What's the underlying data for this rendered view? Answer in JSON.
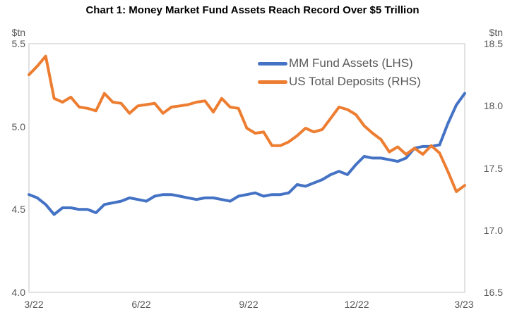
{
  "title": "Chart 1: Money Market Fund Assets Reach Record Over $5 Trillion",
  "axes": {
    "left": {
      "unit": "$tn",
      "ticks": [
        "5.5",
        "5.0",
        "4.5",
        "4.0"
      ]
    },
    "right": {
      "unit": "$tn",
      "ticks": [
        "18.5",
        "18.0",
        "17.5",
        "17.0",
        "16.5"
      ]
    },
    "x": {
      "ticks": [
        "3/22",
        "6/22",
        "9/22",
        "12/22",
        "3/23"
      ]
    }
  },
  "legend": {
    "items": [
      {
        "label": "MM Fund Assets (LHS)",
        "color": "#4472C4"
      },
      {
        "label": "US Total Deposits (RHS)",
        "color": "#ED7D31"
      }
    ]
  },
  "chart_data": {
    "type": "line",
    "title": "Chart 1: Money Market Fund Assets Reach Record Over $5 Trillion",
    "x_frequency": "weekly",
    "x_range": [
      "3/22",
      "3/23"
    ],
    "x_tick_labels": [
      "3/22",
      "6/22",
      "9/22",
      "12/22",
      "3/23"
    ],
    "left_axis": {
      "label": "$tn",
      "range": [
        4.0,
        5.5
      ],
      "tick_step": 0.5
    },
    "right_axis": {
      "label": "$tn",
      "range": [
        16.5,
        18.5
      ],
      "tick_step": 0.5
    },
    "grid": "off",
    "legend_position": "inside-top-right",
    "series": [
      {
        "name": "MM Fund Assets (LHS)",
        "name_key": "mm-fund-assets",
        "axis": "left",
        "color": "#4472C4",
        "values": [
          4.59,
          4.57,
          4.53,
          4.47,
          4.51,
          4.51,
          4.5,
          4.5,
          4.48,
          4.53,
          4.54,
          4.55,
          4.57,
          4.56,
          4.55,
          4.58,
          4.59,
          4.59,
          4.58,
          4.57,
          4.56,
          4.57,
          4.57,
          4.56,
          4.55,
          4.58,
          4.59,
          4.6,
          4.58,
          4.59,
          4.59,
          4.6,
          4.65,
          4.64,
          4.66,
          4.68,
          4.71,
          4.73,
          4.71,
          4.77,
          4.82,
          4.81,
          4.81,
          4.8,
          4.79,
          4.81,
          4.87,
          4.88,
          4.88,
          4.89,
          5.02,
          5.13,
          5.2
        ]
      },
      {
        "name": "US Total Deposits (RHS)",
        "name_key": "us-total-deposits",
        "axis": "right",
        "color": "#ED7D31",
        "values": [
          18.25,
          18.32,
          18.4,
          18.06,
          18.03,
          18.07,
          17.99,
          17.98,
          17.96,
          18.1,
          18.03,
          18.02,
          17.94,
          18.0,
          18.01,
          18.02,
          17.94,
          17.99,
          18.0,
          18.01,
          18.03,
          18.04,
          17.95,
          18.06,
          17.99,
          17.98,
          17.82,
          17.78,
          17.79,
          17.68,
          17.68,
          17.71,
          17.76,
          17.82,
          17.79,
          17.81,
          17.9,
          17.99,
          17.97,
          17.93,
          17.84,
          17.78,
          17.73,
          17.63,
          17.67,
          17.61,
          17.66,
          17.61,
          17.68,
          17.62,
          17.47,
          17.31,
          17.36
        ]
      }
    ]
  },
  "style": {
    "plot_border_color": "#D9D9D9",
    "text_gray": "#595959",
    "line_width": 4
  }
}
